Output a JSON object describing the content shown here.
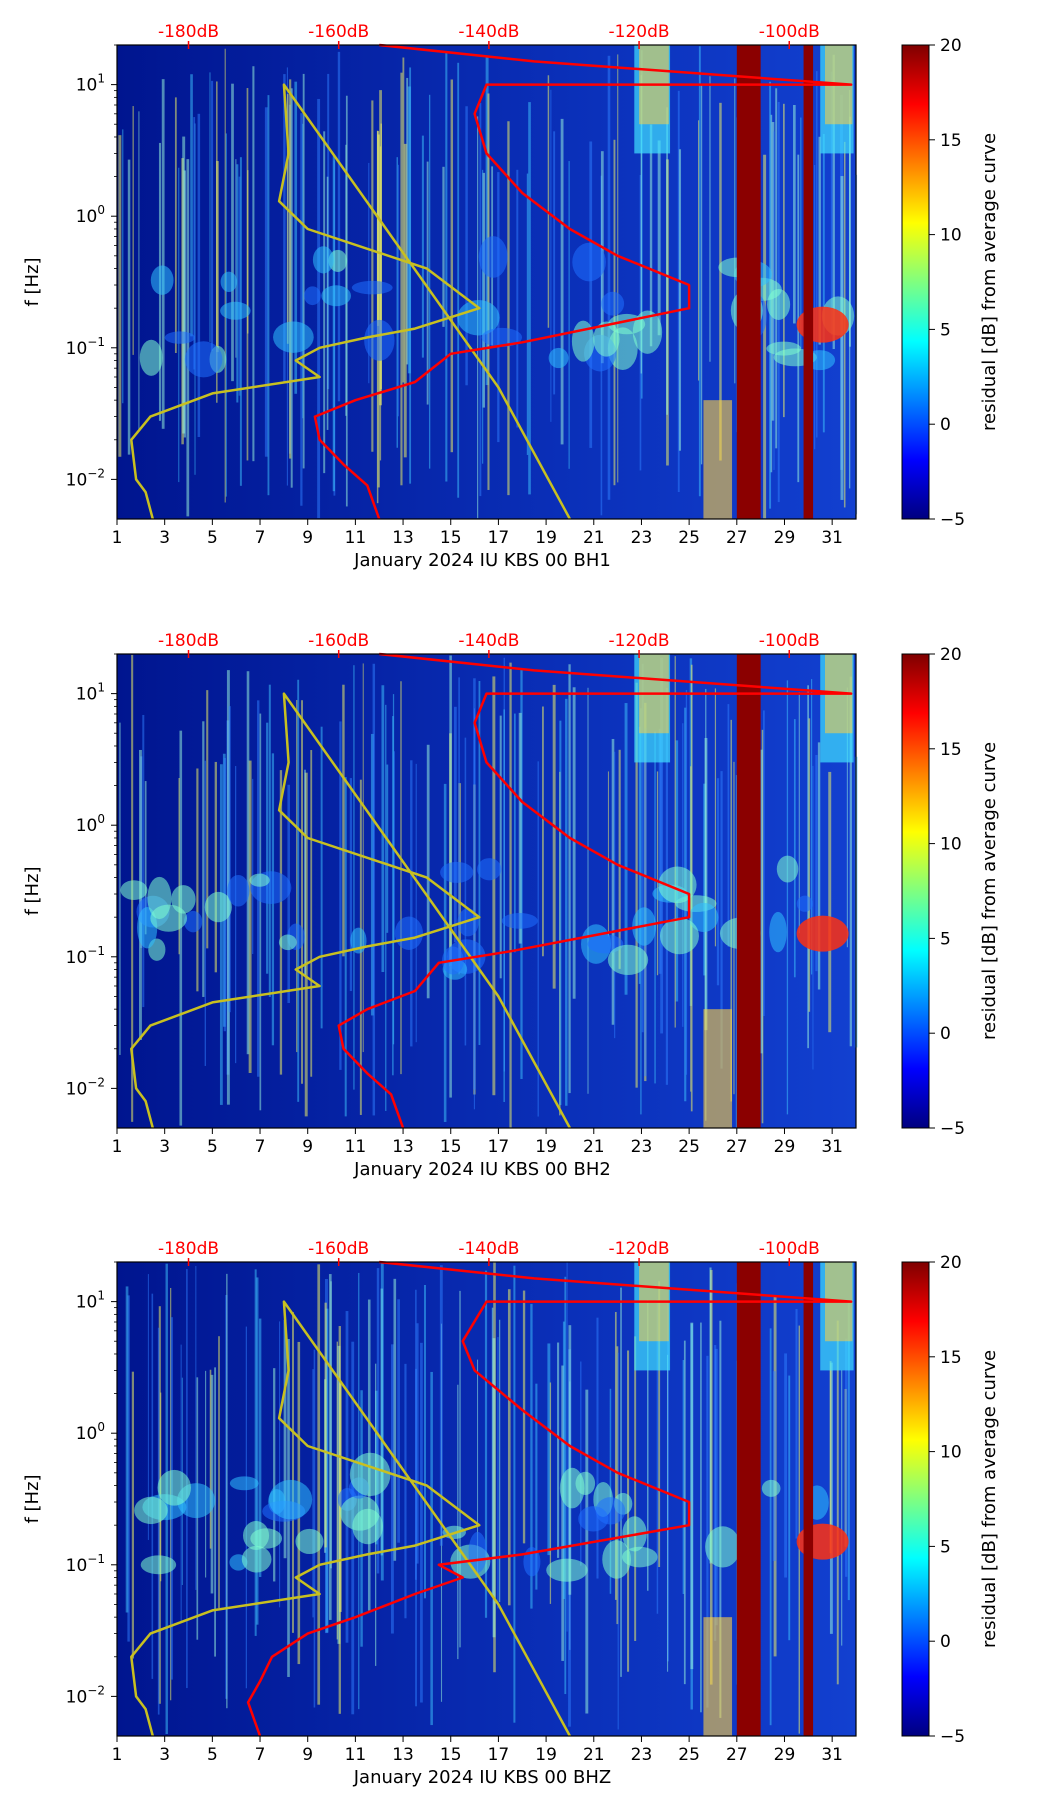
{
  "chart_data": [
    {
      "type": "heatmap",
      "xlabel": "January 2024 IU KBS 00 BH1",
      "ylabel": "f [Hz]",
      "x_ticks": [
        "1",
        "3",
        "5",
        "7",
        "9",
        "11",
        "13",
        "15",
        "17",
        "19",
        "21",
        "23",
        "25",
        "27",
        "29",
        "31"
      ],
      "y_ticks": [
        "10^-2",
        "10^-1",
        "10^0",
        "10^1"
      ],
      "xlim": [
        1,
        32
      ],
      "ylim": [
        0.005,
        20
      ],
      "top_ticks": [
        "-180dB",
        "-160dB",
        "-140dB",
        "-120dB",
        "-100dB"
      ],
      "colorbar": {
        "label": "residual [dB] from average curve",
        "ticks": [
          "20",
          "15",
          "10",
          "5",
          "0",
          "−5"
        ],
        "range": [
          -5,
          20
        ]
      },
      "yellow_curve": [
        [
          2.5,
          0.005
        ],
        [
          2.2,
          0.008
        ],
        [
          1.8,
          0.01
        ],
        [
          1.6,
          0.02
        ],
        [
          2.4,
          0.03
        ],
        [
          5,
          0.045
        ],
        [
          9.5,
          0.06
        ],
        [
          8.5,
          0.08
        ],
        [
          9.5,
          0.1
        ],
        [
          11.5,
          0.12
        ],
        [
          13.5,
          0.14
        ],
        [
          16.2,
          0.2
        ],
        [
          14,
          0.4
        ],
        [
          9,
          0.8
        ],
        [
          7.8,
          1.3
        ],
        [
          8.2,
          3
        ],
        [
          8,
          10
        ],
        [
          17,
          0.05
        ],
        [
          20,
          0.005
        ]
      ],
      "red_curve": [
        [
          12,
          0.005
        ],
        [
          11.5,
          0.009
        ],
        [
          10.5,
          0.013
        ],
        [
          9.5,
          0.02
        ],
        [
          9.3,
          0.03
        ],
        [
          11,
          0.04
        ],
        [
          13.5,
          0.055
        ],
        [
          15,
          0.09
        ],
        [
          18,
          0.11
        ],
        [
          25,
          0.2
        ],
        [
          25,
          0.3
        ],
        [
          22,
          0.5
        ],
        [
          20,
          0.8
        ],
        [
          18,
          1.5
        ],
        [
          16.5,
          3
        ],
        [
          16,
          6
        ],
        [
          16.5,
          10
        ],
        [
          31.8,
          10
        ],
        [
          18.5,
          15
        ],
        [
          12,
          20
        ]
      ],
      "dark_bands": [
        [
          27,
          28
        ],
        [
          29.8,
          30.2
        ]
      ]
    },
    {
      "type": "heatmap",
      "xlabel": "January 2024 IU KBS 00 BH2",
      "ylabel": "f [Hz]",
      "x_ticks": [
        "1",
        "3",
        "5",
        "7",
        "9",
        "11",
        "13",
        "15",
        "17",
        "19",
        "21",
        "23",
        "25",
        "27",
        "29",
        "31"
      ],
      "y_ticks": [
        "10^-2",
        "10^-1",
        "10^0",
        "10^1"
      ],
      "xlim": [
        1,
        32
      ],
      "ylim": [
        0.005,
        20
      ],
      "top_ticks": [
        "-180dB",
        "-160dB",
        "-140dB",
        "-120dB",
        "-100dB"
      ],
      "colorbar": {
        "label": "residual [dB] from average curve",
        "ticks": [
          "20",
          "15",
          "10",
          "5",
          "0",
          "−5"
        ],
        "range": [
          -5,
          20
        ]
      },
      "yellow_curve": [
        [
          2.5,
          0.005
        ],
        [
          2.2,
          0.008
        ],
        [
          1.8,
          0.01
        ],
        [
          1.6,
          0.02
        ],
        [
          2.4,
          0.03
        ],
        [
          5,
          0.045
        ],
        [
          9.5,
          0.06
        ],
        [
          8.5,
          0.08
        ],
        [
          9.5,
          0.1
        ],
        [
          11.5,
          0.12
        ],
        [
          13.5,
          0.14
        ],
        [
          16.2,
          0.2
        ],
        [
          14,
          0.4
        ],
        [
          9,
          0.8
        ],
        [
          7.8,
          1.3
        ],
        [
          8.2,
          3
        ],
        [
          8,
          10
        ],
        [
          17,
          0.05
        ],
        [
          20,
          0.005
        ]
      ],
      "red_curve": [
        [
          13,
          0.005
        ],
        [
          12.5,
          0.009
        ],
        [
          11.5,
          0.013
        ],
        [
          10.5,
          0.02
        ],
        [
          10.3,
          0.03
        ],
        [
          11.5,
          0.04
        ],
        [
          13.5,
          0.055
        ],
        [
          14.5,
          0.09
        ],
        [
          17.5,
          0.11
        ],
        [
          25,
          0.2
        ],
        [
          25,
          0.3
        ],
        [
          22,
          0.5
        ],
        [
          20,
          0.8
        ],
        [
          18,
          1.5
        ],
        [
          16.5,
          3
        ],
        [
          16,
          6
        ],
        [
          16.5,
          10
        ],
        [
          31.8,
          10
        ],
        [
          18.5,
          15
        ],
        [
          12,
          20
        ]
      ],
      "dark_bands": [
        [
          27,
          28
        ]
      ]
    },
    {
      "type": "heatmap",
      "xlabel": "January 2024 IU KBS 00 BHZ",
      "ylabel": "f [Hz]",
      "x_ticks": [
        "1",
        "3",
        "5",
        "7",
        "9",
        "11",
        "13",
        "15",
        "17",
        "19",
        "21",
        "23",
        "25",
        "27",
        "29",
        "31"
      ],
      "y_ticks": [
        "10^-2",
        "10^-1",
        "10^0",
        "10^1"
      ],
      "xlim": [
        1,
        32
      ],
      "ylim": [
        0.005,
        20
      ],
      "top_ticks": [
        "-180dB",
        "-160dB",
        "-140dB",
        "-120dB",
        "-100dB"
      ],
      "colorbar": {
        "label": "residual [dB] from average curve",
        "ticks": [
          "20",
          "15",
          "10",
          "5",
          "0",
          "−5"
        ],
        "range": [
          -5,
          20
        ]
      },
      "yellow_curve": [
        [
          2.5,
          0.005
        ],
        [
          2.2,
          0.008
        ],
        [
          1.8,
          0.01
        ],
        [
          1.6,
          0.02
        ],
        [
          2.4,
          0.03
        ],
        [
          5,
          0.045
        ],
        [
          9.5,
          0.06
        ],
        [
          8.5,
          0.08
        ],
        [
          9.5,
          0.1
        ],
        [
          11.5,
          0.12
        ],
        [
          13.5,
          0.14
        ],
        [
          16.2,
          0.2
        ],
        [
          14,
          0.4
        ],
        [
          9,
          0.8
        ],
        [
          7.8,
          1.3
        ],
        [
          8.2,
          3
        ],
        [
          8,
          10
        ],
        [
          17,
          0.05
        ],
        [
          20,
          0.005
        ]
      ],
      "red_curve": [
        [
          7,
          0.005
        ],
        [
          6.5,
          0.009
        ],
        [
          7,
          0.013
        ],
        [
          7.5,
          0.02
        ],
        [
          9,
          0.03
        ],
        [
          11,
          0.04
        ],
        [
          13.5,
          0.06
        ],
        [
          15.5,
          0.08
        ],
        [
          14.5,
          0.1
        ],
        [
          18,
          0.12
        ],
        [
          25,
          0.2
        ],
        [
          25,
          0.3
        ],
        [
          22,
          0.5
        ],
        [
          20,
          0.8
        ],
        [
          18,
          1.5
        ],
        [
          16,
          3
        ],
        [
          15.5,
          5
        ],
        [
          16.5,
          10
        ],
        [
          31.8,
          10
        ],
        [
          18.5,
          15
        ],
        [
          12,
          20
        ]
      ],
      "dark_bands": [
        [
          27,
          28
        ],
        [
          29.8,
          30.2
        ]
      ]
    }
  ]
}
